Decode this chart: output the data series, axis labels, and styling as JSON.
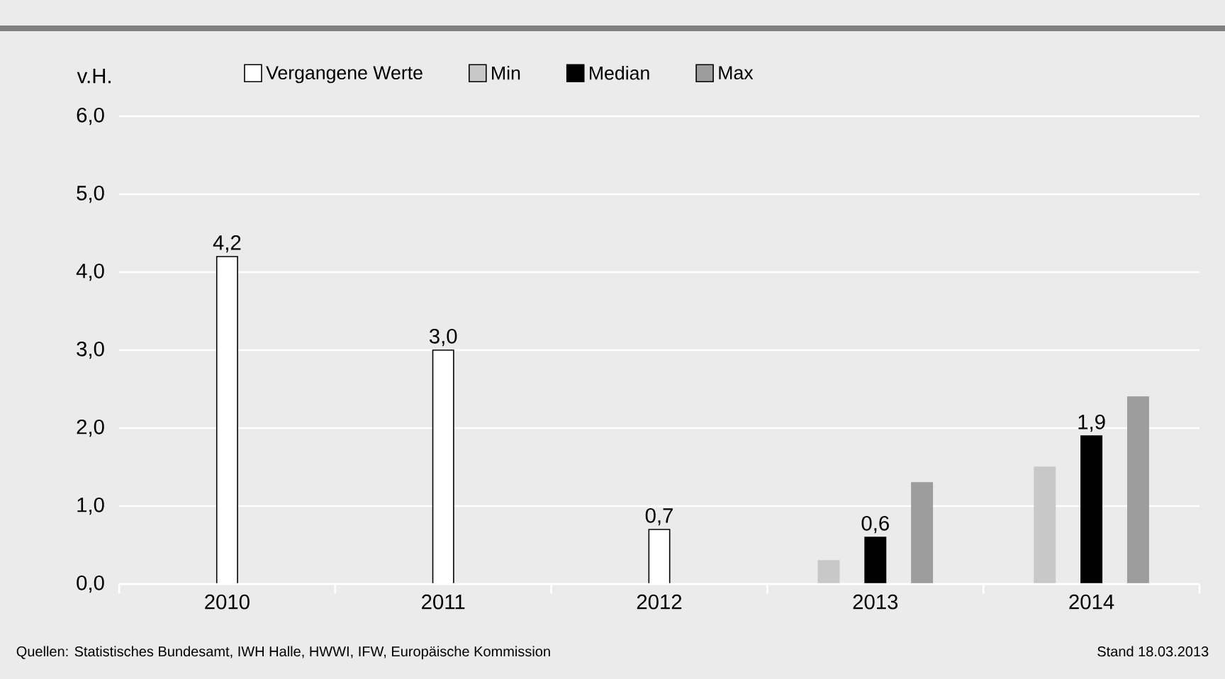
{
  "chart_data": {
    "type": "bar",
    "ylabel": "v.H.",
    "categories": [
      "2010",
      "2011",
      "2012",
      "2013",
      "2014"
    ],
    "series": [
      {
        "name": "Vergangene Werte",
        "color": "#ffffff",
        "values": [
          4.2,
          3.0,
          0.7,
          null,
          null
        ],
        "value_labels": [
          "4,2",
          "3,0",
          "0,7",
          null,
          null
        ]
      },
      {
        "name": "Min",
        "color": "#c8c8c8",
        "values": [
          null,
          null,
          null,
          0.3,
          1.5
        ]
      },
      {
        "name": "Median",
        "color": "#000000",
        "values": [
          null,
          null,
          null,
          0.6,
          1.9
        ],
        "value_labels": [
          null,
          null,
          null,
          "0,6",
          "1,9"
        ]
      },
      {
        "name": "Max",
        "color": "#9d9d9d",
        "values": [
          null,
          null,
          null,
          1.3,
          2.4
        ]
      }
    ],
    "ylim": [
      0,
      6
    ],
    "yticks": [
      {
        "value": 0,
        "label": "0,0"
      },
      {
        "value": 1,
        "label": "1,0"
      },
      {
        "value": 2,
        "label": "2,0"
      },
      {
        "value": 3,
        "label": "3,0"
      },
      {
        "value": 4,
        "label": "4,0"
      },
      {
        "value": 5,
        "label": "5,0"
      },
      {
        "value": 6,
        "label": "6,0"
      }
    ],
    "grid": "y",
    "legend": "top",
    "annotations": [
      "Quellen: Statistisches Bundesamt, IWH Halle, HWWI, IFW, Europäische Kommission",
      "Stand 18.03.2013"
    ]
  }
}
